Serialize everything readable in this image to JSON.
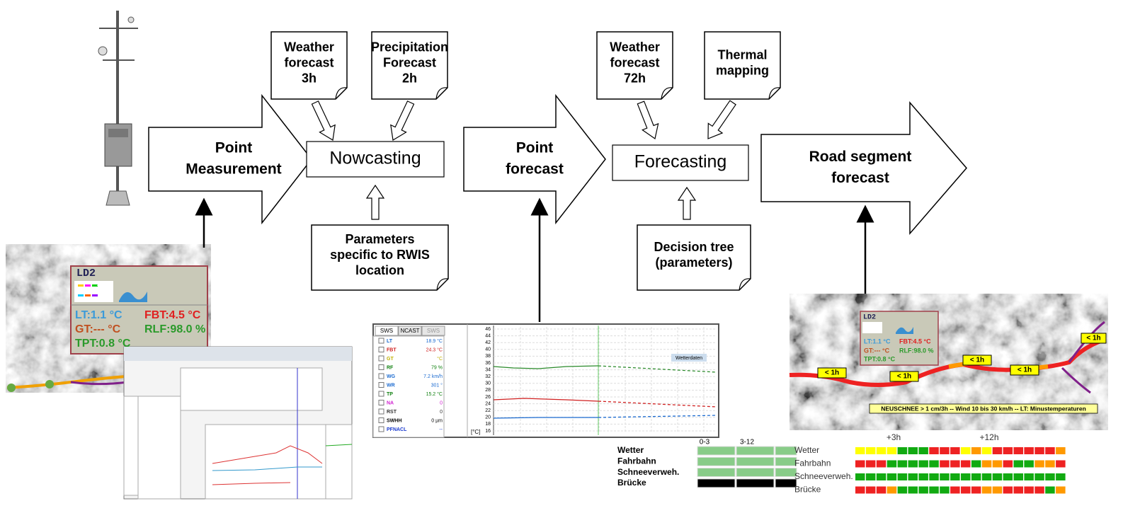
{
  "documents": [
    {
      "lines": [
        "Weather",
        "forecast",
        "3h"
      ]
    },
    {
      "lines": [
        "Precipitation",
        "Forecast",
        "2h"
      ]
    },
    {
      "lines": [
        "Weather",
        "forecast",
        "72h"
      ]
    },
    {
      "lines": [
        "Thermal",
        "mapping"
      ]
    },
    {
      "lines": [
        "Parameters",
        "specific to RWIS",
        "location"
      ]
    },
    {
      "lines": [
        "Decision tree",
        "(parameters)"
      ]
    }
  ],
  "process_arrows": [
    {
      "lines": [
        "Point",
        "Measurement"
      ]
    },
    {
      "lines": [
        "Point",
        "forecast"
      ]
    },
    {
      "lines": [
        "Road segment",
        "forecast"
      ]
    }
  ],
  "process_boxes": [
    {
      "label": "Nowcasting"
    },
    {
      "label": "Forecasting"
    }
  ],
  "station_popup": {
    "title": "LD2",
    "readings": [
      "LT:1.1 °C",
      "FBT:4.5 °C",
      "GT:--- °C",
      "RLF:98.0 %",
      "TPT:0.8 °C"
    ]
  },
  "chart_panel": {
    "tabs": [
      "SWS",
      "NCAST",
      "SWS"
    ],
    "parameters": [
      {
        "name": "LT",
        "value": "18.9 °C"
      },
      {
        "name": "FBT",
        "value": "24.3 °C"
      },
      {
        "name": "GT",
        "value": "°C"
      },
      {
        "name": "RF",
        "value": "79 %"
      },
      {
        "name": "WG",
        "value": "7.2 km/h"
      },
      {
        "name": "WR",
        "value": "301 °"
      },
      {
        "name": "TP",
        "value": "15.2 °C"
      },
      {
        "name": "NA",
        "value": "0"
      },
      {
        "name": "RST",
        "value": "0"
      },
      {
        "name": "SWHH",
        "value": "0 µm"
      },
      {
        "name": "PFNACL",
        "value": "--"
      }
    ],
    "y_ticks": [
      46,
      44,
      42,
      40,
      38,
      36,
      34,
      32,
      30,
      28,
      26,
      24,
      22,
      20,
      18,
      16
    ],
    "unit": "[°C]",
    "note": "Wetterdaten"
  },
  "segment_table_small": {
    "columns": [
      "0-3",
      "3-12"
    ],
    "rows": [
      "Wetter",
      "Fahrbahn",
      "Schneeverweh.",
      "Brücke"
    ]
  },
  "segment_map": {
    "title": "LD2",
    "readings": [
      "LT:1.1 °C",
      "FBT:4.5 °C",
      "GT:--- °C",
      "RLF:98.0 %",
      "TPT:0.8 °C"
    ],
    "badges": [
      "< 1h",
      "< 1h",
      "< 1h",
      "< 1h",
      "< 1h"
    ],
    "alert": "NEUSCHNEE > 1 cm/3h -- Wind 10 bis 30 km/h -- LT: Minustemperaturen"
  },
  "segment_table": {
    "columns": [
      "+3h",
      "+12h"
    ],
    "rows": [
      "Wetter",
      "Fahrbahn",
      "Schneeverweh.",
      "Brücke"
    ]
  }
}
